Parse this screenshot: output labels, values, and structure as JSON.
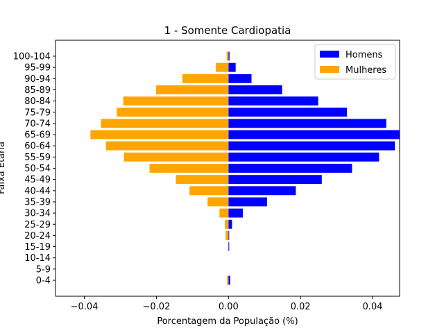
{
  "chart_data": {
    "type": "bar",
    "orientation": "horizontal",
    "title": "1 - Somente Cardiopatia",
    "xlabel": "Porcentagem da População (%)",
    "ylabel": "Faixa Etária",
    "xlim": [
      -0.048,
      0.0475
    ],
    "xticks": [
      -0.04,
      -0.02,
      0.0,
      0.02,
      0.04
    ],
    "xtick_labels": [
      "−0.04",
      "−0.02",
      "0.00",
      "0.02",
      "0.04"
    ],
    "legend_position": "top-right",
    "categories": [
      "0-4",
      "5-9",
      "10-14",
      "15-19",
      "20-24",
      "25-29",
      "30-34",
      "35-39",
      "40-44",
      "45-49",
      "50-54",
      "55-59",
      "60-64",
      "65-69",
      "70-74",
      "75-79",
      "80-84",
      "85-89",
      "90-94",
      "95-99",
      "100-104"
    ],
    "series": [
      {
        "name": "Homens",
        "color": "#0000ff",
        "values": [
          0.0005,
          0.0,
          0.0,
          0.0002,
          0.0002,
          0.001,
          0.004,
          0.0107,
          0.0187,
          0.0259,
          0.0343,
          0.0418,
          0.0462,
          0.0475,
          0.0438,
          0.0329,
          0.0249,
          0.0149,
          0.0064,
          0.002,
          0.0003
        ]
      },
      {
        "name": "Mulheres",
        "color": "#ffa500",
        "values": [
          -0.0004,
          0.0,
          0.0,
          0.0,
          -0.0008,
          -0.001,
          -0.0025,
          -0.0058,
          -0.0108,
          -0.0146,
          -0.0219,
          -0.029,
          -0.034,
          -0.0383,
          -0.0354,
          -0.031,
          -0.0292,
          -0.0201,
          -0.0128,
          -0.0035,
          -0.0005
        ]
      }
    ]
  }
}
